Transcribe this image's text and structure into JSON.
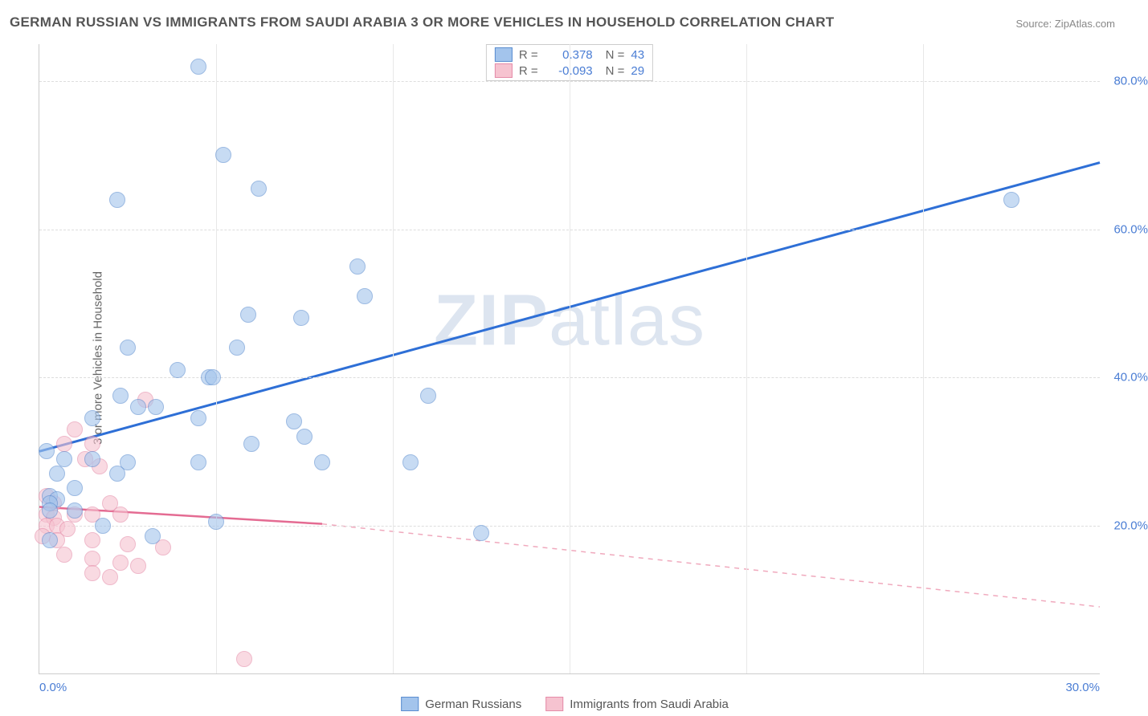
{
  "title": "GERMAN RUSSIAN VS IMMIGRANTS FROM SAUDI ARABIA 3 OR MORE VEHICLES IN HOUSEHOLD CORRELATION CHART",
  "source": "Source: ZipAtlas.com",
  "y_axis_label": "3 or more Vehicles in Household",
  "watermark": "ZIPatlas",
  "axes": {
    "xlim": [
      0,
      30
    ],
    "ylim": [
      0,
      85
    ],
    "y_ticks": [
      20,
      40,
      60,
      80
    ],
    "y_tick_labels": [
      "20.0%",
      "40.0%",
      "60.0%",
      "80.0%"
    ],
    "x_ticks": [
      0,
      5,
      10,
      15,
      20,
      25,
      30
    ],
    "x_tick_labels": [
      "0.0%",
      "",
      "",
      "",
      "",
      "",
      "30.0%"
    ],
    "grid_color": "#dddddd",
    "tick_label_color": "#4a7dd4",
    "tick_fontsize": 15
  },
  "legend_stats": {
    "rows": [
      {
        "swatch": "blue",
        "r_label": "R =",
        "r": "0.378",
        "n_label": "N =",
        "n": "43"
      },
      {
        "swatch": "pink",
        "r_label": "R =",
        "r": "-0.093",
        "n_label": "N =",
        "n": "29"
      }
    ]
  },
  "bottom_legend": {
    "items": [
      {
        "swatch": "blue",
        "label": "German Russians"
      },
      {
        "swatch": "pink",
        "label": "Immigrants from Saudi Arabia"
      }
    ]
  },
  "series": {
    "blue": {
      "type": "scatter",
      "fill": "#a3c4ec",
      "stroke": "#5b8dd0",
      "marker_size": 18,
      "line": {
        "x1": 0,
        "y1": 30,
        "x2": 30,
        "y2": 69,
        "color": "#2e6fd6",
        "width": 3,
        "dash": "none"
      },
      "points": [
        [
          4.5,
          82
        ],
        [
          2.2,
          64
        ],
        [
          5.2,
          70
        ],
        [
          6.2,
          65.5
        ],
        [
          9.0,
          55
        ],
        [
          9.2,
          51
        ],
        [
          5.9,
          48.5
        ],
        [
          7.4,
          48
        ],
        [
          2.5,
          44
        ],
        [
          5.6,
          44
        ],
        [
          3.9,
          41
        ],
        [
          4.8,
          40
        ],
        [
          4.9,
          40
        ],
        [
          11.0,
          37.5
        ],
        [
          2.3,
          37.5
        ],
        [
          2.8,
          36
        ],
        [
          3.3,
          36
        ],
        [
          1.5,
          34.5
        ],
        [
          4.5,
          34.5
        ],
        [
          7.2,
          34
        ],
        [
          7.5,
          32
        ],
        [
          6.0,
          31
        ],
        [
          0.2,
          30
        ],
        [
          0.7,
          29
        ],
        [
          1.5,
          29
        ],
        [
          2.5,
          28.5
        ],
        [
          4.5,
          28.5
        ],
        [
          8.0,
          28.5
        ],
        [
          10.5,
          28.5
        ],
        [
          0.5,
          27
        ],
        [
          2.2,
          27
        ],
        [
          1.0,
          25
        ],
        [
          0.3,
          24
        ],
        [
          0.5,
          23.5
        ],
        [
          0.3,
          23
        ],
        [
          0.3,
          22
        ],
        [
          1.0,
          22
        ],
        [
          5.0,
          20.5
        ],
        [
          1.8,
          20
        ],
        [
          3.2,
          18.5
        ],
        [
          12.5,
          19
        ],
        [
          0.3,
          18
        ],
        [
          27.5,
          64
        ]
      ]
    },
    "pink": {
      "type": "scatter",
      "fill": "#f6c3d0",
      "stroke": "#e58ba8",
      "marker_size": 18,
      "line_solid": {
        "x1": 0,
        "y1": 22.5,
        "x2": 8,
        "y2": 20.2,
        "color": "#e46b92",
        "width": 2.5
      },
      "line_dashed": {
        "x1": 8,
        "y1": 20.2,
        "x2": 30,
        "y2": 9,
        "color": "#f0a9bd",
        "width": 1.5,
        "dash": "6,6"
      },
      "points": [
        [
          3.0,
          37
        ],
        [
          1.0,
          33
        ],
        [
          0.7,
          31
        ],
        [
          1.5,
          31
        ],
        [
          1.3,
          29
        ],
        [
          1.7,
          28
        ],
        [
          0.2,
          24
        ],
        [
          0.4,
          23
        ],
        [
          2.0,
          23
        ],
        [
          0.2,
          21.5
        ],
        [
          0.4,
          21
        ],
        [
          1.0,
          21.5
        ],
        [
          1.5,
          21.5
        ],
        [
          2.3,
          21.5
        ],
        [
          0.2,
          20
        ],
        [
          0.5,
          20
        ],
        [
          0.8,
          19.5
        ],
        [
          0.1,
          18.5
        ],
        [
          0.5,
          18
        ],
        [
          1.5,
          18
        ],
        [
          2.5,
          17.5
        ],
        [
          3.5,
          17
        ],
        [
          0.7,
          16
        ],
        [
          1.5,
          15.5
        ],
        [
          2.3,
          15
        ],
        [
          1.5,
          13.5
        ],
        [
          2.0,
          13
        ],
        [
          2.8,
          14.5
        ],
        [
          5.8,
          2
        ]
      ]
    }
  },
  "colors": {
    "background": "#ffffff",
    "title": "#555555",
    "source": "#888888"
  }
}
